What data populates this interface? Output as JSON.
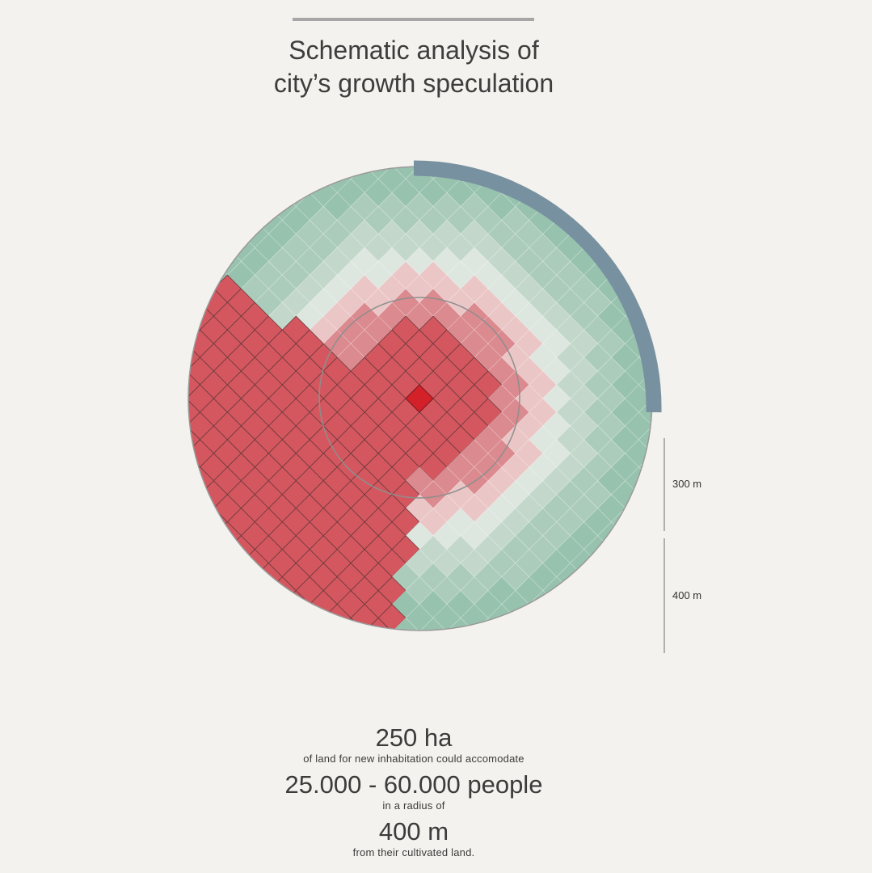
{
  "header": {
    "title_line1": "Schematic analysis of",
    "title_line2": "city’s growth speculation"
  },
  "scale": {
    "label_300": "300 m",
    "label_400": "400 m"
  },
  "stats": {
    "area_value": "250 ha",
    "area_caption": "of land for new inhabitation could accomodate",
    "people_value": "25.000 - 60.000 people",
    "people_caption": "in a radius of",
    "radius_value": "400 m",
    "radius_caption": "from their cultivated land."
  },
  "colors": {
    "background": "#f3f2ee",
    "rule": "#a6a6a6",
    "arc": "#7891a0",
    "core": "#d42129",
    "red_dense": "#d4575f",
    "red_medium": "#db8a8f",
    "red_light": "#ebc6c6",
    "green_pale": "#dde6df",
    "green_light": "#c3d8cb",
    "green_medium": "#acccbb",
    "green_dark": "#97c2ae"
  }
}
